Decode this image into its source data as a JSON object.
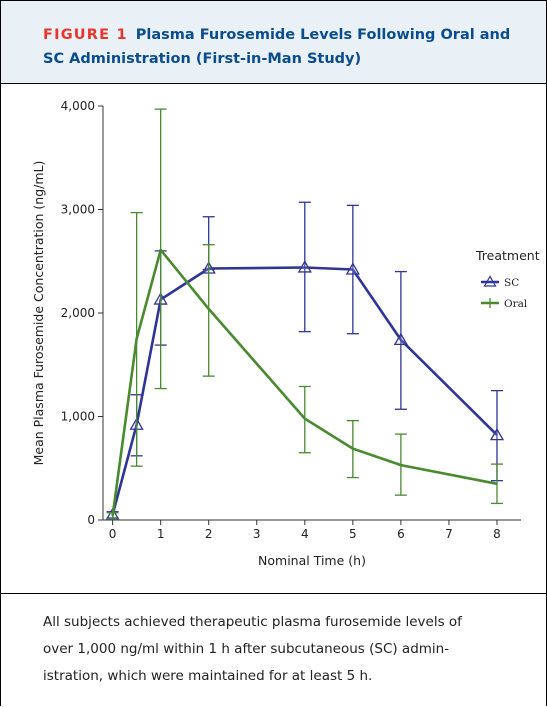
{
  "figure": {
    "label": "FIGURE 1",
    "title": "Plasma Furosemide Levels Following Oral and SC Administration (First-in-Man Study)",
    "caption_lines": [
      "All subjects achieved therapeutic plasma furosemide levels of",
      "over 1,000 ng/ml within 1 h after subcutaneous (SC) admin-",
      "istration, which were maintained for at least 5 h."
    ]
  },
  "chart_data": {
    "type": "line",
    "title": "",
    "xlabel": "Nominal Time (h)",
    "ylabel": "Mean Plasma Furosemide Concentration (ng/mL)",
    "xlim": [
      -0.2,
      8.5
    ],
    "ylim": [
      0,
      4000
    ],
    "x_ticks": [
      0,
      1,
      2,
      3,
      4,
      5,
      6,
      7,
      8
    ],
    "x_tick_labels": [
      "0",
      "1",
      "2",
      "3",
      "4",
      "5",
      "6",
      "7",
      "8"
    ],
    "y_ticks": [
      0,
      1000,
      2000,
      3000,
      4000
    ],
    "y_tick_labels": [
      "0",
      "1,000",
      "2,000",
      "3,000",
      "4,000"
    ],
    "grid": false,
    "legend": {
      "title": "Treatment",
      "position": "right"
    },
    "series": [
      {
        "name": "SC",
        "color": "#2e3594",
        "marker": "triangle",
        "points": [
          {
            "x": 0,
            "y": 50,
            "lo": 20,
            "hi": 80
          },
          {
            "x": 0.5,
            "y": 920,
            "lo": 620,
            "hi": 1210
          },
          {
            "x": 1,
            "y": 2130,
            "lo": 1690,
            "hi": 2600
          },
          {
            "x": 2,
            "y": 2430,
            "lo": 2420,
            "hi": 2930
          },
          {
            "x": 4,
            "y": 2440,
            "lo": 1820,
            "hi": 3070
          },
          {
            "x": 5,
            "y": 2420,
            "lo": 1800,
            "hi": 3040
          },
          {
            "x": 6,
            "y": 1740,
            "lo": 1070,
            "hi": 2400
          },
          {
            "x": 8,
            "y": 820,
            "lo": 380,
            "hi": 1250
          }
        ]
      },
      {
        "name": "Oral",
        "color": "#4a8a2f",
        "marker": "none",
        "points": [
          {
            "x": 0,
            "y": 40,
            "lo": 10,
            "hi": 70
          },
          {
            "x": 0.5,
            "y": 1750,
            "lo": 520,
            "hi": 2970
          },
          {
            "x": 1,
            "y": 2610,
            "lo": 1270,
            "hi": 3970
          },
          {
            "x": 2,
            "y": 2040,
            "lo": 1390,
            "hi": 2660
          },
          {
            "x": 4,
            "y": 980,
            "lo": 650,
            "hi": 1290
          },
          {
            "x": 5,
            "y": 690,
            "lo": 410,
            "hi": 960
          },
          {
            "x": 6,
            "y": 530,
            "lo": 240,
            "hi": 830
          },
          {
            "x": 8,
            "y": 350,
            "lo": 160,
            "hi": 540
          }
        ]
      }
    ]
  }
}
